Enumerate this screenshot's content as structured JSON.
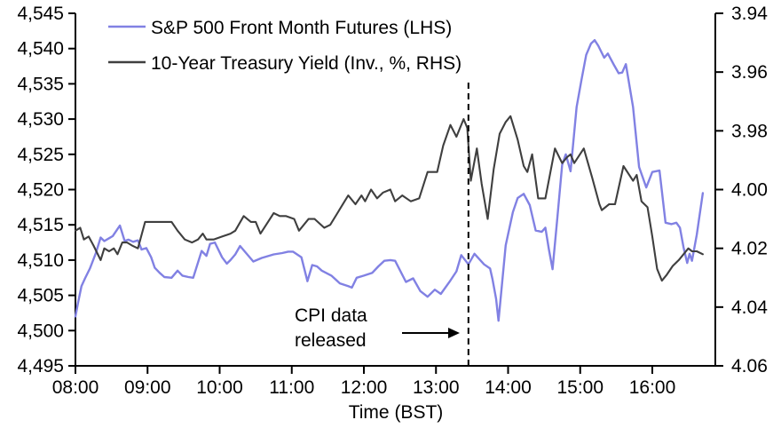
{
  "chart_data": {
    "type": "line",
    "title": "",
    "xlabel": "Time (BST)",
    "x_axis": {
      "start_label": "08:00",
      "tick_labels": [
        "08:00",
        "09:00",
        "10:00",
        "11:00",
        "12:00",
        "13:00",
        "14:00",
        "15:00",
        "16:00"
      ],
      "tick_minutes": [
        0,
        60,
        120,
        180,
        240,
        300,
        360,
        420,
        480
      ],
      "range_minutes": [
        0,
        532
      ]
    },
    "left_axis": {
      "applies_to": "S&P 500 Front Month Futures",
      "min": 4495,
      "max": 4545,
      "ticks": [
        4495,
        4500,
        4505,
        4510,
        4515,
        4520,
        4525,
        4530,
        4535,
        4540,
        4545
      ],
      "tick_labels": [
        "4,495",
        "4,500",
        "4,505",
        "4,510",
        "4,515",
        "4,520",
        "4,525",
        "4,530",
        "4,535",
        "4,540",
        "4,545"
      ]
    },
    "right_axis": {
      "applies_to": "10-Year Treasury Yield",
      "inverted": true,
      "min": 3.94,
      "max": 4.06,
      "ticks": [
        3.94,
        3.96,
        3.98,
        4.0,
        4.02,
        4.04,
        4.06
      ],
      "tick_labels": [
        "3.94",
        "3.96",
        "3.98",
        "4.00",
        "4.02",
        "4.04",
        "4.06"
      ]
    },
    "legend": [
      {
        "label": "S&P 500 Front Month Futures (LHS)",
        "color": "#8181e3"
      },
      {
        "label": "10-Year Treasury Yield (Inv., %, RHS)",
        "color": "#3f3f3f"
      }
    ],
    "annotation": {
      "text_line1": "CPI data",
      "text_line2": "released",
      "event_minute": 327
    },
    "series": [
      {
        "name": "S&P 500 Front Month Futures (LHS)",
        "axis": "left",
        "color": "#8181e3",
        "points": [
          [
            0,
            4502.0
          ],
          [
            2,
            4503.8
          ],
          [
            5,
            4506.3
          ],
          [
            8,
            4507.4
          ],
          [
            12,
            4508.8
          ],
          [
            17,
            4511.0
          ],
          [
            21,
            4513.2
          ],
          [
            24,
            4512.7
          ],
          [
            28,
            4513.1
          ],
          [
            31,
            4513.4
          ],
          [
            37,
            4514.9
          ],
          [
            41,
            4512.7
          ],
          [
            44,
            4512.9
          ],
          [
            48,
            4512.6
          ],
          [
            52,
            4512.8
          ],
          [
            55,
            4511.5
          ],
          [
            59,
            4511.7
          ],
          [
            63,
            4510.4
          ],
          [
            66,
            4508.9
          ],
          [
            70,
            4508.2
          ],
          [
            74,
            4507.6
          ],
          [
            80,
            4507.5
          ],
          [
            85,
            4508.5
          ],
          [
            89,
            4507.8
          ],
          [
            94,
            4507.6
          ],
          [
            98,
            4507.5
          ],
          [
            105,
            4511.3
          ],
          [
            109,
            4510.6
          ],
          [
            112,
            4512.3
          ],
          [
            116,
            4512.5
          ],
          [
            122,
            4510.4
          ],
          [
            126,
            4509.5
          ],
          [
            129,
            4510.0
          ],
          [
            133,
            4510.8
          ],
          [
            137,
            4512.0
          ],
          [
            141,
            4511.2
          ],
          [
            148,
            4509.8
          ],
          [
            155,
            4510.3
          ],
          [
            165,
            4510.8
          ],
          [
            172,
            4511.0
          ],
          [
            177,
            4511.2
          ],
          [
            181,
            4511.2
          ],
          [
            188,
            4510.4
          ],
          [
            193,
            4507.0
          ],
          [
            197,
            4509.3
          ],
          [
            201,
            4509.1
          ],
          [
            205,
            4508.5
          ],
          [
            213,
            4507.8
          ],
          [
            220,
            4506.7
          ],
          [
            227,
            4506.3
          ],
          [
            230,
            4506.1
          ],
          [
            234,
            4507.5
          ],
          [
            240,
            4507.8
          ],
          [
            247,
            4508.2
          ],
          [
            252,
            4509.1
          ],
          [
            257,
            4509.9
          ],
          [
            262,
            4510.0
          ],
          [
            266,
            4509.9
          ],
          [
            275,
            4506.9
          ],
          [
            281,
            4507.4
          ],
          [
            287,
            4505.6
          ],
          [
            293,
            4504.8
          ],
          [
            299,
            4505.8
          ],
          [
            304,
            4505.2
          ],
          [
            312,
            4507.1
          ],
          [
            317,
            4508.4
          ],
          [
            321,
            4510.7
          ],
          [
            327,
            4509.4
          ],
          [
            332,
            4510.9
          ],
          [
            340,
            4509.4
          ],
          [
            345,
            4508.8
          ],
          [
            347,
            4507.3
          ],
          [
            350,
            4504.5
          ],
          [
            352,
            4501.4
          ],
          [
            358,
            4512.1
          ],
          [
            364,
            4516.8
          ],
          [
            368,
            4518.8
          ],
          [
            373,
            4519.4
          ],
          [
            378,
            4517.8
          ],
          [
            383,
            4514.2
          ],
          [
            388,
            4514.0
          ],
          [
            391,
            4514.6
          ],
          [
            394,
            4511.5
          ],
          [
            397,
            4508.7
          ],
          [
            401,
            4516.0
          ],
          [
            405,
            4523.5
          ],
          [
            408,
            4525.0
          ],
          [
            412,
            4522.6
          ],
          [
            417,
            4531.7
          ],
          [
            421,
            4535.5
          ],
          [
            425,
            4539.1
          ],
          [
            429,
            4540.7
          ],
          [
            432,
            4541.2
          ],
          [
            435,
            4540.4
          ],
          [
            440,
            4538.7
          ],
          [
            443,
            4539.3
          ],
          [
            448,
            4537.7
          ],
          [
            452,
            4536.5
          ],
          [
            455,
            4536.6
          ],
          [
            458,
            4537.8
          ],
          [
            464,
            4531.7
          ],
          [
            469,
            4523.2
          ],
          [
            475,
            4520.3
          ],
          [
            480,
            4522.5
          ],
          [
            486,
            4522.7
          ],
          [
            491,
            4515.3
          ],
          [
            496,
            4515.1
          ],
          [
            500,
            4515.3
          ],
          [
            503,
            4514.6
          ],
          [
            506,
            4511.8
          ],
          [
            509,
            4509.6
          ],
          [
            511,
            4510.9
          ],
          [
            513,
            4509.9
          ],
          [
            517,
            4513.6
          ],
          [
            522,
            4519.5
          ]
        ]
      },
      {
        "name": "10-Year Treasury Yield (Inv., %, RHS)",
        "axis": "right",
        "color": "#3f3f3f",
        "points": [
          [
            0,
            4.014
          ],
          [
            4,
            4.013
          ],
          [
            7,
            4.017
          ],
          [
            11,
            4.016
          ],
          [
            15,
            4.019
          ],
          [
            21,
            4.024
          ],
          [
            24,
            4.02
          ],
          [
            28,
            4.021
          ],
          [
            32,
            4.02
          ],
          [
            35,
            4.022
          ],
          [
            39,
            4.018
          ],
          [
            43,
            4.018
          ],
          [
            47,
            4.019
          ],
          [
            52,
            4.02
          ],
          [
            58,
            4.011
          ],
          [
            80,
            4.011
          ],
          [
            85,
            4.014
          ],
          [
            91,
            4.017
          ],
          [
            97,
            4.018
          ],
          [
            102,
            4.017
          ],
          [
            106,
            4.015
          ],
          [
            109,
            4.017
          ],
          [
            115,
            4.017
          ],
          [
            122,
            4.016
          ],
          [
            129,
            4.015
          ],
          [
            133,
            4.014
          ],
          [
            140,
            4.009
          ],
          [
            146,
            4.011
          ],
          [
            150,
            4.011
          ],
          [
            154,
            4.015
          ],
          [
            165,
            4.008
          ],
          [
            170,
            4.009
          ],
          [
            175,
            4.009
          ],
          [
            182,
            4.01
          ],
          [
            186,
            4.014
          ],
          [
            194,
            4.01
          ],
          [
            199,
            4.01
          ],
          [
            207,
            4.013
          ],
          [
            212,
            4.012
          ],
          [
            218,
            4.008
          ],
          [
            224,
            4.004
          ],
          [
            227,
            4.002
          ],
          [
            233,
            4.005
          ],
          [
            238,
            4.002
          ],
          [
            241,
            4.004
          ],
          [
            246,
            4.0
          ],
          [
            251,
            4.003
          ],
          [
            256,
            4.001
          ],
          [
            262,
            4.0
          ],
          [
            266,
            4.004
          ],
          [
            272,
            4.002
          ],
          [
            279,
            4.004
          ],
          [
            286,
            4.003
          ],
          [
            293,
            3.994
          ],
          [
            301,
            3.994
          ],
          [
            306,
            3.985
          ],
          [
            312,
            3.978
          ],
          [
            317,
            3.982
          ],
          [
            323,
            3.976
          ],
          [
            326,
            3.979
          ],
          [
            329,
            3.997
          ],
          [
            334,
            3.986
          ],
          [
            338,
            3.998
          ],
          [
            343,
            4.01
          ],
          [
            348,
            3.993
          ],
          [
            353,
            3.981
          ],
          [
            358,
            3.977
          ],
          [
            362,
            3.975
          ],
          [
            368,
            3.983
          ],
          [
            373,
            3.992
          ],
          [
            376,
            3.994
          ],
          [
            380,
            3.988
          ],
          [
            385,
            4.003
          ],
          [
            391,
            4.003
          ],
          [
            399,
            3.986
          ],
          [
            405,
            3.991
          ],
          [
            409,
            3.989
          ],
          [
            412,
            3.988
          ],
          [
            415,
            3.991
          ],
          [
            423,
            3.986
          ],
          [
            430,
            3.996
          ],
          [
            436,
            4.005
          ],
          [
            438,
            4.007
          ],
          [
            444,
            4.005
          ],
          [
            449,
            4.005
          ],
          [
            456,
            3.992
          ],
          [
            464,
            3.997
          ],
          [
            467,
            3.995
          ],
          [
            471,
            4.004
          ],
          [
            476,
            4.006
          ],
          [
            480,
            4.016
          ],
          [
            484,
            4.027
          ],
          [
            488,
            4.031
          ],
          [
            492,
            4.029
          ],
          [
            497,
            4.026
          ],
          [
            502,
            4.024
          ],
          [
            506,
            4.022
          ],
          [
            510,
            4.02
          ],
          [
            513,
            4.021
          ],
          [
            517,
            4.021
          ],
          [
            522,
            4.022
          ]
        ]
      }
    ]
  }
}
